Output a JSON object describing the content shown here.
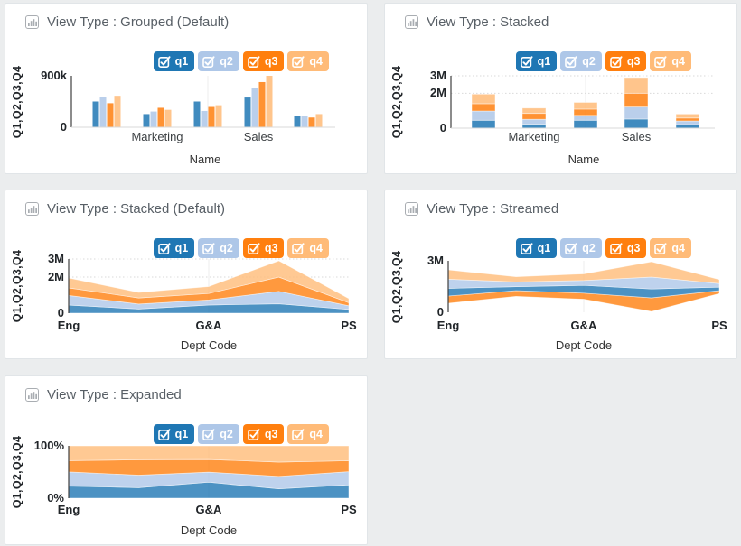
{
  "app": {
    "background": "#ebedee"
  },
  "palette": {
    "q1": "#1f77b4",
    "q2": "#aec7e8",
    "q3": "#ff7f0e",
    "q4": "#ffbb78"
  },
  "legend": {
    "items": [
      {
        "label": "q1",
        "checked": true,
        "color": "#1f77b4"
      },
      {
        "label": "q2",
        "checked": true,
        "color": "#aec7e8"
      },
      {
        "label": "q3",
        "checked": true,
        "color": "#ff7f0e"
      },
      {
        "label": "q4",
        "checked": true,
        "color": "#ffbb78"
      }
    ]
  },
  "chart_data": [
    {
      "type": "bar",
      "mode": "grouped",
      "title": "View Type : Grouped (Default)",
      "xlabel": "Name",
      "ylabel": "Q1,Q2,Q3,Q4",
      "x_tick_labels": [
        "",
        "Marketing",
        "",
        "Sales",
        ""
      ],
      "y_ticks": [
        {
          "label": "900k",
          "value": 900000
        },
        {
          "label": "0",
          "value": 0
        }
      ],
      "ylim": [
        0,
        900000
      ],
      "y_gridlines": [],
      "series": [
        {
          "name": "q1",
          "values": [
            450000,
            230000,
            450000,
            520000,
            205000
          ]
        },
        {
          "name": "q2",
          "values": [
            530000,
            275000,
            285000,
            690000,
            205000
          ]
        },
        {
          "name": "q3",
          "values": [
            420000,
            340000,
            355000,
            790000,
            170000
          ]
        },
        {
          "name": "q4",
          "values": [
            550000,
            305000,
            385000,
            900000,
            230000
          ]
        }
      ]
    },
    {
      "type": "bar",
      "mode": "stacked",
      "title": "View Type : Stacked",
      "xlabel": "Name",
      "ylabel": "Q1,Q2,Q3,Q4",
      "x_tick_labels": [
        "",
        "Marketing",
        "",
        "Sales",
        ""
      ],
      "y_ticks": [
        {
          "label": "3M",
          "value": 3000000
        },
        {
          "label": "2M",
          "value": 2000000
        },
        {
          "label": "0",
          "value": 0
        }
      ],
      "ylim": [
        0,
        3000000
      ],
      "y_gridlines": [
        2000000,
        3000000
      ],
      "series": [
        {
          "name": "q1",
          "values": [
            450000,
            230000,
            450000,
            520000,
            205000
          ]
        },
        {
          "name": "q2",
          "values": [
            530000,
            275000,
            285000,
            690000,
            205000
          ]
        },
        {
          "name": "q3",
          "values": [
            420000,
            340000,
            355000,
            790000,
            170000
          ]
        },
        {
          "name": "q4",
          "values": [
            550000,
            305000,
            385000,
            900000,
            230000
          ]
        }
      ]
    },
    {
      "type": "area",
      "mode": "stacked",
      "title": "View Type : Stacked (Default)",
      "xlabel": "Dept Code",
      "ylabel": "Q1,Q2,Q3,Q4",
      "x_tick_labels": [
        "Eng",
        "",
        "G&A",
        "",
        "PS"
      ],
      "y_ticks": [
        {
          "label": "3M",
          "value": 3000000
        },
        {
          "label": "2M",
          "value": 2000000
        },
        {
          "label": "0",
          "value": 0
        }
      ],
      "ylim": [
        0,
        3000000
      ],
      "y_gridlines": [
        2000000,
        3000000
      ],
      "series": [
        {
          "name": "q1",
          "values": [
            450000,
            230000,
            450000,
            520000,
            205000
          ]
        },
        {
          "name": "q2",
          "values": [
            530000,
            275000,
            285000,
            690000,
            205000
          ]
        },
        {
          "name": "q3",
          "values": [
            420000,
            340000,
            355000,
            790000,
            170000
          ]
        },
        {
          "name": "q4",
          "values": [
            550000,
            305000,
            385000,
            900000,
            230000
          ]
        }
      ]
    },
    {
      "type": "area",
      "mode": "stream",
      "title": "View Type : Streamed",
      "xlabel": "Dept Code",
      "ylabel": "Q1,Q2,Q3,Q4",
      "x_tick_labels": [
        "Eng",
        "",
        "G&A",
        "",
        "PS"
      ],
      "y_ticks": [
        {
          "label": "3M",
          "value": 3000000
        },
        {
          "label": "0",
          "value": 0
        }
      ],
      "ylim": [
        0,
        3000000
      ],
      "y_gridlines": [],
      "layer_order_bottom_to_top": [
        "q3",
        "q1",
        "q2",
        "q4"
      ],
      "series": [
        {
          "name": "q1",
          "values": [
            450000,
            230000,
            450000,
            520000,
            205000
          ]
        },
        {
          "name": "q2",
          "values": [
            530000,
            275000,
            285000,
            690000,
            205000
          ]
        },
        {
          "name": "q3",
          "values": [
            420000,
            340000,
            355000,
            790000,
            170000
          ]
        },
        {
          "name": "q4",
          "values": [
            550000,
            305000,
            385000,
            900000,
            230000
          ]
        }
      ]
    },
    {
      "type": "area",
      "mode": "expanded",
      "title": "View Type : Expanded",
      "xlabel": "Dept Code",
      "ylabel": "Q1,Q2,Q3,Q4",
      "x_tick_labels": [
        "Eng",
        "",
        "G&A",
        "",
        "PS"
      ],
      "y_ticks": [
        {
          "label": "100%",
          "value": 100
        },
        {
          "label": "0%",
          "value": 0
        }
      ],
      "ylim": [
        0,
        100
      ],
      "y_gridlines": [],
      "normalized_to_percent": true,
      "series": [
        {
          "name": "q1",
          "values": [
            450000,
            230000,
            450000,
            520000,
            205000
          ]
        },
        {
          "name": "q2",
          "values": [
            530000,
            275000,
            285000,
            690000,
            205000
          ]
        },
        {
          "name": "q3",
          "values": [
            420000,
            340000,
            355000,
            790000,
            170000
          ]
        },
        {
          "name": "q4",
          "values": [
            550000,
            305000,
            385000,
            900000,
            230000
          ]
        }
      ]
    }
  ]
}
